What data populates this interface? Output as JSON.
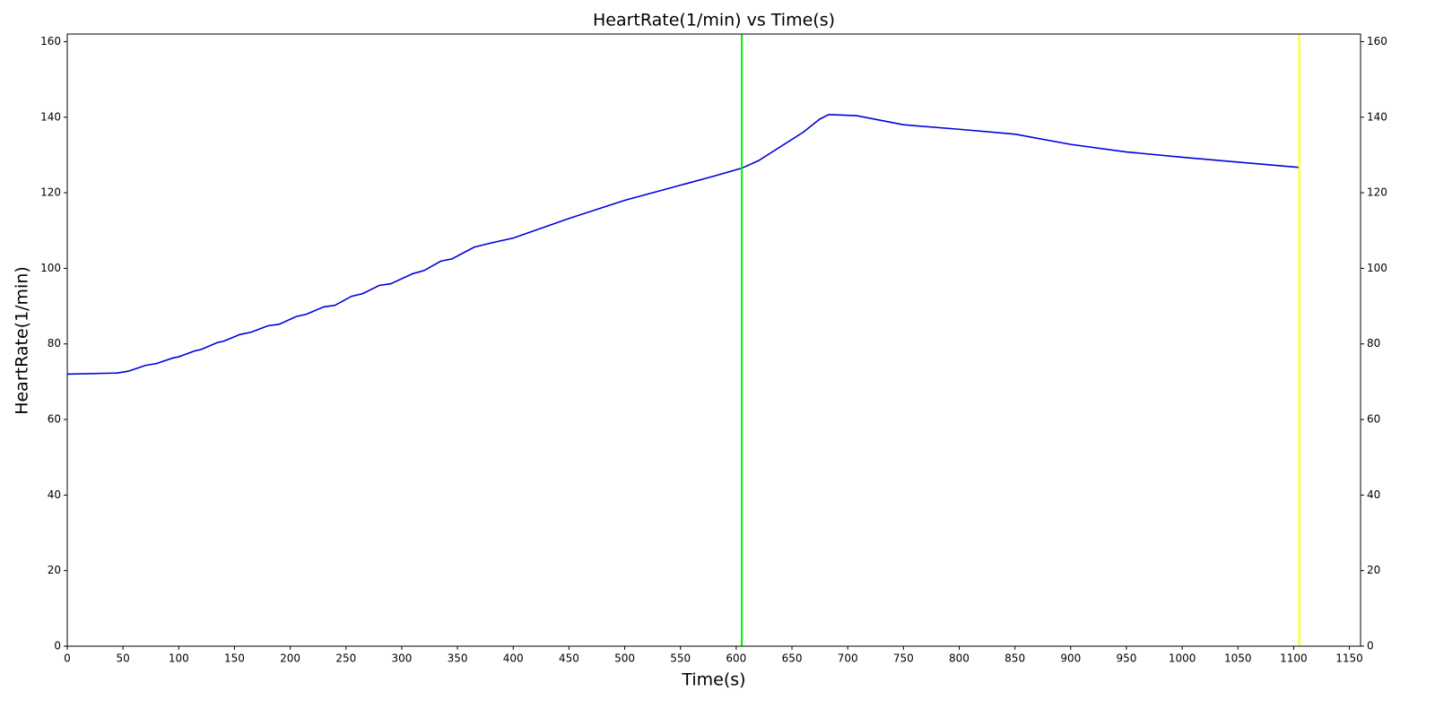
{
  "chart_data": {
    "type": "line",
    "title": "HeartRate(1/min) vs Time(s)",
    "xlabel": "Time(s)",
    "ylabel": "HeartRate(1/min)",
    "x": [
      0,
      45,
      55,
      70,
      80,
      95,
      100,
      115,
      120,
      135,
      140,
      155,
      165,
      180,
      190,
      205,
      215,
      230,
      240,
      255,
      265,
      280,
      290,
      310,
      320,
      335,
      345,
      365,
      380,
      400,
      450,
      500,
      550,
      580,
      605,
      620,
      660,
      675,
      683,
      708,
      750,
      800,
      850,
      900,
      950,
      1000,
      1105
    ],
    "series": [
      {
        "color": "#0000dd",
        "values": [
          72,
          72.3,
          72.8,
          74.3,
          74.8,
          76.3,
          76.6,
          78.2,
          78.5,
          80.4,
          80.7,
          82.5,
          83.1,
          84.8,
          85.2,
          87.2,
          87.9,
          89.8,
          90.2,
          92.6,
          93.3,
          95.5,
          95.9,
          98.6,
          99.4,
          101.9,
          102.5,
          105.6,
          106.7,
          108.0,
          113.2,
          118.0,
          122.0,
          124.4,
          126.5,
          128.5,
          136.0,
          139.5,
          140.7,
          140.4,
          138.0,
          136.8,
          135.5,
          132.8,
          130.8,
          129.4,
          126.7
        ]
      }
    ],
    "vlines": [
      {
        "x": 605,
        "color": "#00ee00"
      },
      {
        "x": 1105,
        "color": "#ffff00"
      }
    ],
    "xlim": [
      0,
      1160
    ],
    "xticks": [
      0,
      50,
      100,
      150,
      200,
      250,
      300,
      350,
      400,
      450,
      500,
      550,
      600,
      650,
      700,
      750,
      800,
      850,
      900,
      950,
      1000,
      1050,
      1100,
      1150
    ],
    "ylim": [
      0,
      162
    ],
    "yticks": [
      0,
      20,
      40,
      60,
      80,
      100,
      120,
      140,
      160
    ],
    "y2lim": [
      0,
      162
    ],
    "y2ticks": [
      0,
      20,
      40,
      60,
      80,
      100,
      120,
      140,
      160
    ]
  }
}
